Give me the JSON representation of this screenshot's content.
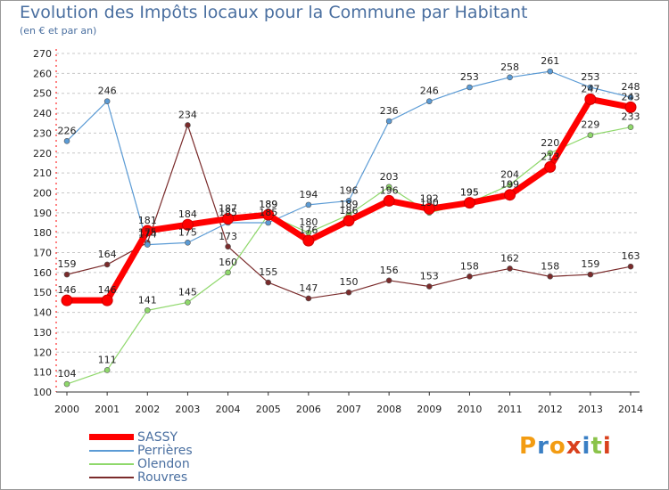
{
  "title": "Evolution des Impôts locaux pour la Commune par Habitant",
  "subtitle": "(en € et par an)",
  "brand": {
    "text": "Proxiti",
    "letters": [
      "P",
      "r",
      "o",
      "x",
      "i",
      "t",
      "i"
    ],
    "colors": [
      "#f39c12",
      "#3a7fc4",
      "#f39c12",
      "#d9411e",
      "#3a7fc4",
      "#8bc34a",
      "#d9411e"
    ]
  },
  "chart_data": {
    "type": "line",
    "title": "Evolution des Impôts locaux pour la Commune par Habitant",
    "subtitle": "(en € et par an)",
    "xlabel": "",
    "ylabel": "",
    "x": [
      2000,
      2001,
      2002,
      2003,
      2004,
      2005,
      2006,
      2007,
      2008,
      2009,
      2010,
      2011,
      2012,
      2013,
      2014
    ],
    "ylim": [
      100,
      270
    ],
    "yticks": [
      100,
      110,
      120,
      130,
      140,
      150,
      160,
      170,
      180,
      190,
      200,
      210,
      220,
      230,
      240,
      250,
      260,
      270
    ],
    "grid": "horizontal dashed",
    "legend_position": "bottom-left",
    "series": [
      {
        "name": "Rouvres",
        "color": "#7a2b2b",
        "values": [
          159,
          164,
          175,
          234,
          173,
          155,
          147,
          150,
          156,
          153,
          158,
          162,
          158,
          159,
          163
        ]
      },
      {
        "name": "Olendon",
        "color": "#8fd86b",
        "values": [
          104,
          111,
          141,
          145,
          160,
          189,
          180,
          189,
          203,
          190,
          195,
          204,
          220,
          229,
          233
        ]
      },
      {
        "name": "Perrières",
        "color": "#5b9bd5",
        "values": [
          226,
          246,
          174,
          175,
          185,
          185,
          194,
          196,
          236,
          246,
          253,
          258,
          261,
          253,
          248
        ]
      },
      {
        "name": "SASSY",
        "color": "#ff0000",
        "values": [
          146,
          146,
          181,
          184,
          187,
          189,
          176,
          186,
          196,
          192,
          195,
          199,
          213,
          247,
          243
        ]
      }
    ],
    "legend": [
      "SASSY",
      "Perrières",
      "Olendon",
      "Rouvres"
    ]
  }
}
